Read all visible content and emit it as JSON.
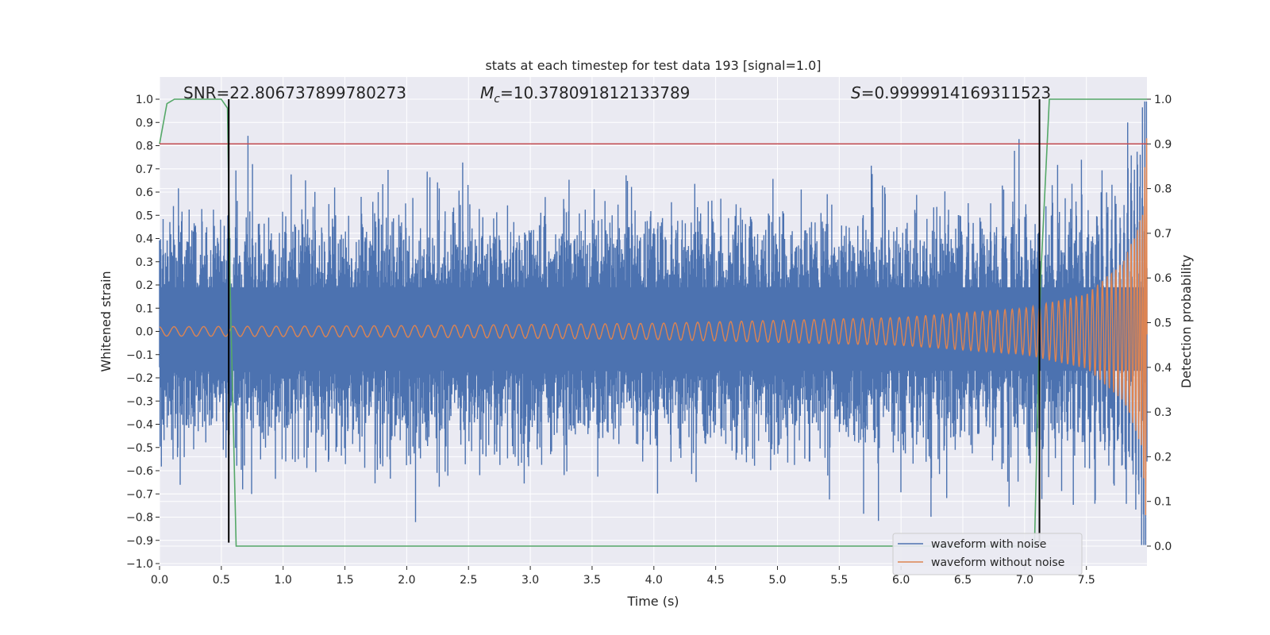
{
  "chart_data": {
    "type": "line",
    "title": "stats at each timestep for test data 193 [signal=1.0]",
    "xlabel": "Time (s)",
    "ylabel": "Whitened strain",
    "y2label": "Detection probability",
    "xlim": [
      0.0,
      7.99
    ],
    "ylim": [
      -1.0,
      1.0
    ],
    "y2lim": [
      -0.05,
      1.05
    ],
    "x_ticks": [
      "0.0",
      "0.5",
      "1.0",
      "1.5",
      "2.0",
      "2.5",
      "3.0",
      "3.5",
      "4.0",
      "4.5",
      "5.0",
      "5.5",
      "6.0",
      "6.5",
      "7.0",
      "7.5"
    ],
    "x_tick_values": [
      0.0,
      0.5,
      1.0,
      1.5,
      2.0,
      2.5,
      3.0,
      3.5,
      4.0,
      4.5,
      5.0,
      5.5,
      6.0,
      6.5,
      7.0,
      7.5
    ],
    "y_ticks": [
      "1.0",
      "0.9",
      "0.8",
      "0.7",
      "0.6",
      "0.5",
      "0.4",
      "0.3",
      "0.2",
      "0.1",
      "0.0",
      "−0.1",
      "−0.2",
      "−0.3",
      "−0.4",
      "−0.5",
      "−0.6",
      "−0.7",
      "−0.8",
      "−0.9",
      "−1.0"
    ],
    "y_tick_values": [
      1.0,
      0.9,
      0.8,
      0.7,
      0.6,
      0.5,
      0.4,
      0.3,
      0.2,
      0.1,
      0.0,
      -0.1,
      -0.2,
      -0.3,
      -0.4,
      -0.5,
      -0.6,
      -0.7,
      -0.8,
      -0.9,
      -1.0
    ],
    "y2_ticks": [
      "1.0",
      "0.9",
      "0.8",
      "0.7",
      "0.6",
      "0.5",
      "0.4",
      "0.3",
      "0.2",
      "0.1",
      "0.0"
    ],
    "y2_tick_values": [
      1.0,
      0.9,
      0.8,
      0.7,
      0.6,
      0.5,
      0.4,
      0.3,
      0.2,
      0.1,
      0.0
    ],
    "grid": true,
    "legend_position": "lower-right",
    "series": [
      {
        "name": "waveform with noise",
        "color": "#4c72b0",
        "axis": "left",
        "description_values": {
          "typical_envelope": [
            -0.4,
            0.4
          ],
          "max": 1.0,
          "min": -0.91
        }
      },
      {
        "name": "waveform without noise",
        "color": "#dd8452",
        "axis": "left",
        "envelope": {
          "x": [
            0.0,
            2.0,
            4.0,
            6.0,
            7.0,
            7.5,
            7.8,
            7.95,
            7.99
          ],
          "amp": [
            0.02,
            0.025,
            0.035,
            0.06,
            0.1,
            0.16,
            0.3,
            0.5,
            0.9
          ]
        }
      },
      {
        "name": "detection probability",
        "color": "#55a868",
        "axis": "right",
        "points": {
          "x": [
            0.0,
            0.06,
            0.12,
            0.5,
            0.55,
            0.57,
            0.62,
            0.7,
            7.0,
            7.08,
            7.13,
            7.2,
            7.99
          ],
          "y": [
            0.9,
            0.99,
            1.0,
            1.0,
            0.98,
            0.6,
            0.0,
            0.0,
            0.0,
            0.0,
            0.6,
            1.0,
            1.0
          ]
        }
      }
    ],
    "threshold": {
      "value": 0.9,
      "axis": "right",
      "color": "#c44e52"
    },
    "vertical_markers": {
      "x": [
        0.56,
        7.12
      ],
      "color": "#000000"
    },
    "annotations": {
      "snr": "SNR=22.806737899780273",
      "mc_symbol": "M",
      "mc_subscript": "c",
      "mc_value": "=10.378091812133789",
      "s_symbol": "S",
      "s_value": "=0.9999914169311523"
    }
  },
  "legend": {
    "item1": "waveform with noise",
    "item2": "waveform without noise"
  }
}
